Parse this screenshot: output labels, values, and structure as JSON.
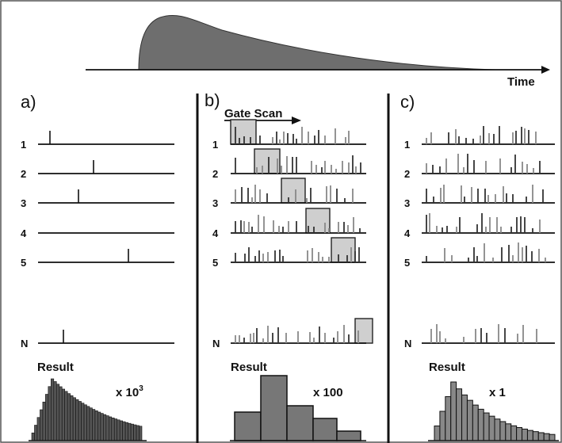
{
  "header": {
    "time_label": "Time"
  },
  "panels": [
    {
      "letter": "a)",
      "rows": [
        "1",
        "2",
        "3",
        "4",
        "5",
        "N"
      ],
      "result_label": "Result",
      "multiplier_base": "x 10",
      "multiplier_exp": "3"
    },
    {
      "letter": "b)",
      "gate_scan_label": "Gate Scan",
      "rows": [
        "1",
        "2",
        "3",
        "4",
        "5",
        "N"
      ],
      "result_label": "Result",
      "multiplier": "x 100"
    },
    {
      "letter": "c)",
      "rows": [
        "1",
        "2",
        "3",
        "4",
        "5",
        "N"
      ],
      "result_label": "Result",
      "multiplier": "x 1"
    }
  ],
  "colors": {
    "pulse_fill": "#6e6e6e",
    "gate_fill": "#cfcfcf",
    "bar_fill": "#7a7a7a",
    "line": "#111111"
  }
}
